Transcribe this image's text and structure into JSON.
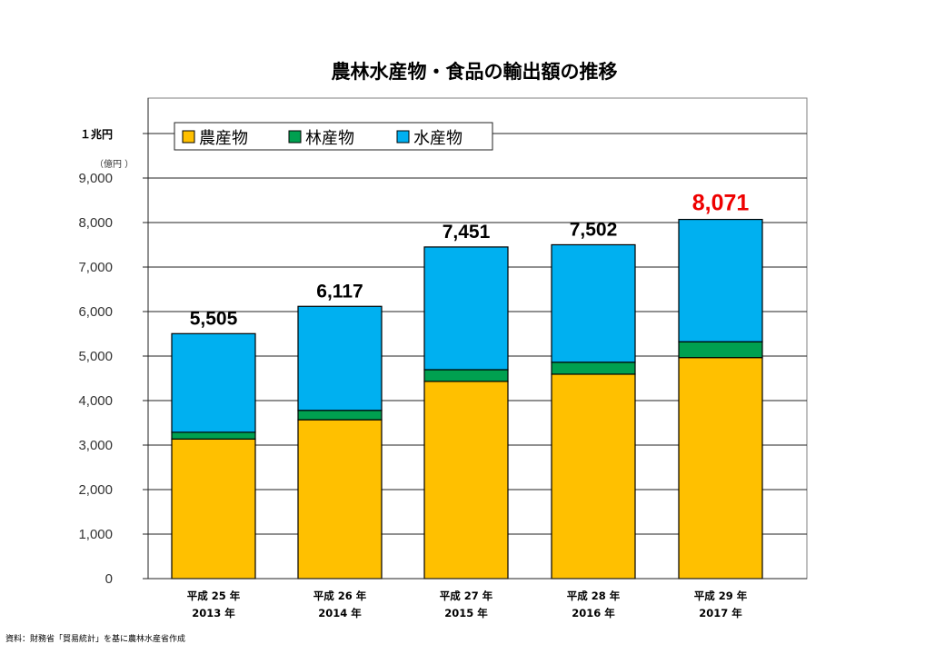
{
  "chart_data": {
    "type": "bar",
    "stacked": true,
    "title": "農林水産物・食品の輸出額の推移",
    "unit_label": "（億円 ）",
    "trillion_label": "１兆円",
    "trillion_value": 10000,
    "yticks": [
      "0",
      "1,000",
      "2,000",
      "3,000",
      "4,000",
      "5,000",
      "6,000",
      "7,000",
      "8,000",
      "9,000"
    ],
    "ylim": [
      0,
      10000
    ],
    "grid": true,
    "legend_position": "top-left",
    "categories": [
      {
        "line1": "平成 25 年",
        "line2": "2013 年"
      },
      {
        "line1": "平成 26 年",
        "line2": "2014 年"
      },
      {
        "line1": "平成 27 年",
        "line2": "2015 年"
      },
      {
        "line1": "平成 28 年",
        "line2": "2016 年"
      },
      {
        "line1": "平成 29 年",
        "line2": "2017 年"
      }
    ],
    "series": [
      {
        "name": "農産物",
        "color": "#ffc000",
        "values": [
          3136,
          3569,
          4431,
          4593,
          4966
        ]
      },
      {
        "name": "林産物",
        "color": "#00a050",
        "values": [
          152,
          211,
          263,
          268,
          355
        ]
      },
      {
        "name": "水産物",
        "color": "#00b0f0",
        "values": [
          2216,
          2337,
          2757,
          2640,
          2749
        ]
      }
    ],
    "totals": [
      "5,505",
      "6,117",
      "7,451",
      "7,502",
      "8,071"
    ],
    "highlight_index": 4,
    "highlight_color": "#ee0000",
    "source": "資料：財務省「貿易統計」を基に農林水産省作成"
  }
}
